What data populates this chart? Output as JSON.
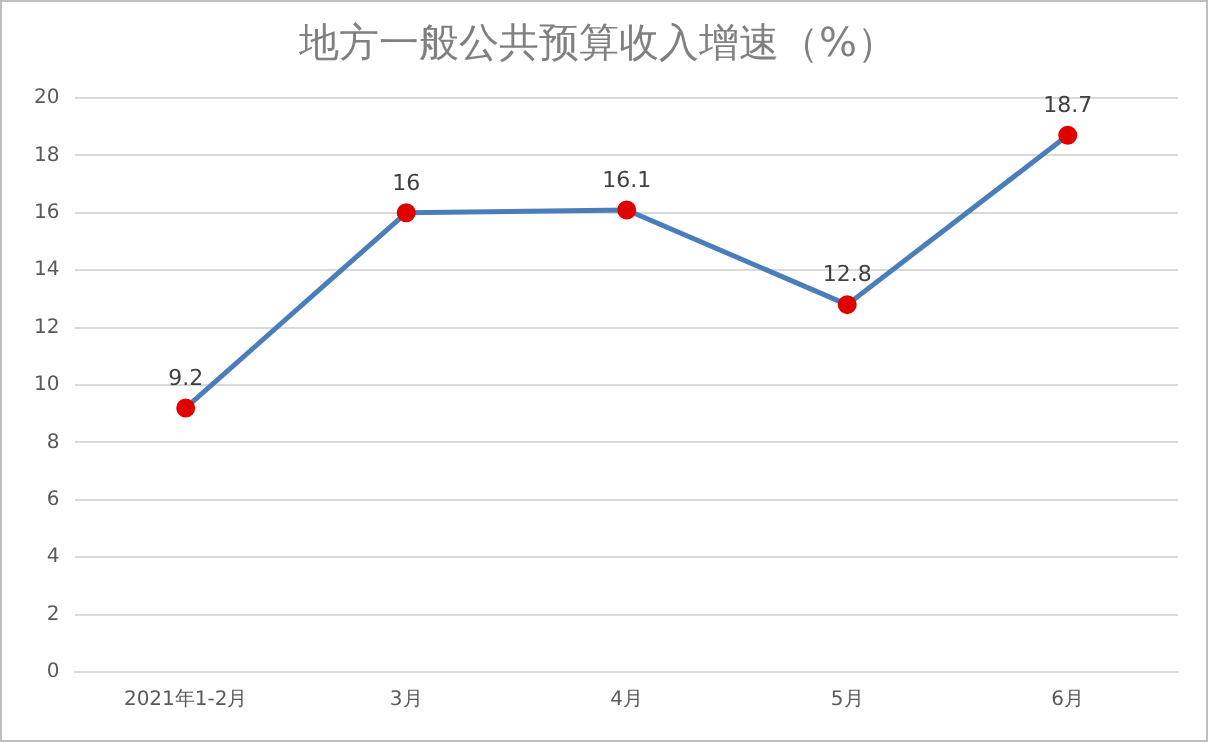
{
  "chart_data": {
    "type": "line",
    "title": "地方一般公共预算收入增速（%）",
    "categories": [
      "2021年1-2月",
      "3月",
      "4月",
      "5月",
      "6月"
    ],
    "series": [
      {
        "color": "#4a7ebb",
        "colors": [
          "#e00000",
          "#e00000",
          "#e00000",
          "#e00000",
          "#e00000"
        ],
        "values": [
          9.2,
          16,
          16.1,
          12.8,
          18.7
        ]
      }
    ],
    "ylim": [
      0,
      20
    ],
    "yticks": [
      0,
      2,
      4,
      6,
      8,
      10,
      12,
      14,
      16,
      18,
      20
    ],
    "grid": "y",
    "data_labels": true,
    "marker": "circle",
    "line_style": "solid"
  }
}
